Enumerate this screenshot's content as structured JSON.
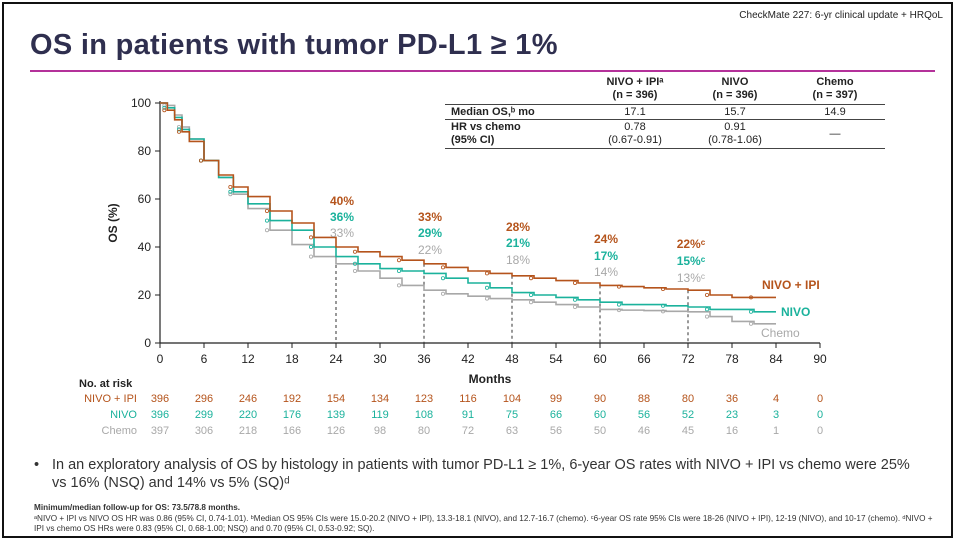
{
  "header": {
    "top_right": "CheckMate 227: 6-yr clinical update + HRQoL",
    "title": "OS in patients with tumor PD-L1 ≥ 1%"
  },
  "stats_table": {
    "columns": [
      "NIVO + IPIᵃ",
      "NIVO",
      "Chemo"
    ],
    "ns": [
      "(n = 396)",
      "(n = 396)",
      "(n = 397)"
    ],
    "median_label": "Median OS,ᵇ mo",
    "median": [
      "17.1",
      "15.7",
      "14.9"
    ],
    "hr_label_1": "HR vs chemo",
    "hr_label_2": "(95% CI)",
    "hr": [
      "0.78",
      "0.91",
      "—"
    ],
    "hr_ci": [
      "(0.67-0.91)",
      "(0.78-1.06)",
      ""
    ]
  },
  "chart_data": {
    "type": "line",
    "xlabel": "Months",
    "ylabel": "OS (%)",
    "xlim": [
      0,
      90
    ],
    "ylim": [
      0,
      100
    ],
    "xticks": [
      0,
      6,
      12,
      18,
      24,
      30,
      36,
      42,
      48,
      54,
      60,
      66,
      72,
      78,
      84,
      90
    ],
    "yticks": [
      0,
      20,
      40,
      60,
      80,
      100
    ],
    "series": [
      {
        "name": "NIVO + IPI",
        "color": "#b5541c",
        "x": [
          0,
          1,
          2,
          3,
          4,
          6,
          8,
          10,
          12,
          15,
          18,
          21,
          24,
          27,
          30,
          33,
          36,
          39,
          42,
          45,
          48,
          51,
          54,
          57,
          60,
          63,
          66,
          69,
          72,
          75,
          78,
          81,
          84
        ],
        "y": [
          100,
          97,
          93,
          88,
          84,
          76,
          70,
          65,
          61,
          55,
          50,
          44,
          40,
          38,
          36,
          34.5,
          33,
          31.5,
          30,
          29,
          28,
          27,
          26,
          25,
          24,
          23.5,
          23,
          22.5,
          22,
          20,
          19,
          19,
          19
        ]
      },
      {
        "name": "NIVO",
        "color": "#1bb29c",
        "x": [
          0,
          1,
          2,
          3,
          4,
          6,
          8,
          10,
          12,
          15,
          18,
          21,
          24,
          27,
          30,
          33,
          36,
          39,
          42,
          45,
          48,
          51,
          54,
          57,
          60,
          63,
          66,
          69,
          72,
          75,
          78,
          81,
          84
        ],
        "y": [
          100,
          98,
          94,
          89,
          85,
          76,
          69,
          63,
          58,
          51,
          47,
          40,
          36,
          33,
          31,
          30,
          29,
          27,
          25,
          23,
          21,
          20,
          19,
          18,
          17,
          16,
          16,
          15.5,
          15,
          14,
          14,
          13,
          13
        ]
      },
      {
        "name": "Chemo",
        "color": "#a8a8a8",
        "x": [
          0,
          1,
          2,
          3,
          4,
          6,
          8,
          10,
          12,
          15,
          18,
          21,
          24,
          27,
          30,
          33,
          36,
          39,
          42,
          45,
          48,
          51,
          54,
          57,
          60,
          63,
          66,
          69,
          72,
          75,
          78,
          81,
          84
        ],
        "y": [
          100,
          99,
          95,
          90,
          85,
          76,
          69,
          62,
          56,
          47,
          41,
          36,
          33,
          30,
          27,
          24,
          22,
          20.5,
          19.5,
          18.5,
          18,
          17,
          16,
          15,
          14,
          13.7,
          13.5,
          13.2,
          13,
          11,
          9,
          8,
          8
        ]
      }
    ],
    "annotations": [
      {
        "x": 24,
        "labels": [
          {
            "text": "40%",
            "series": "NIVO + IPI"
          },
          {
            "text": "36%",
            "series": "NIVO"
          },
          {
            "text": "33%",
            "series": "Chemo"
          }
        ]
      },
      {
        "x": 36,
        "labels": [
          {
            "text": "33%",
            "series": "NIVO + IPI"
          },
          {
            "text": "29%",
            "series": "NIVO"
          },
          {
            "text": "22%",
            "series": "Chemo"
          }
        ]
      },
      {
        "x": 48,
        "labels": [
          {
            "text": "28%",
            "series": "NIVO + IPI"
          },
          {
            "text": "21%",
            "series": "NIVO"
          },
          {
            "text": "18%",
            "series": "Chemo"
          }
        ]
      },
      {
        "x": 60,
        "labels": [
          {
            "text": "24%",
            "series": "NIVO + IPI"
          },
          {
            "text": "17%",
            "series": "NIVO"
          },
          {
            "text": "14%",
            "series": "Chemo"
          }
        ]
      },
      {
        "x": 72,
        "labels": [
          {
            "text": "22%ᶜ",
            "series": "NIVO + IPI"
          },
          {
            "text": "15%ᶜ",
            "series": "NIVO"
          },
          {
            "text": "13%ᶜ",
            "series": "Chemo"
          }
        ]
      }
    ],
    "line_labels": [
      "NIVO + IPI",
      "NIVO",
      "Chemo"
    ],
    "at_risk": {
      "title": "No. at risk",
      "rows": [
        {
          "label": "NIVO + IPI",
          "color": "#b5541c",
          "values": [
            396,
            296,
            246,
            192,
            154,
            134,
            123,
            116,
            104,
            99,
            90,
            88,
            80,
            36,
            4,
            0
          ]
        },
        {
          "label": "NIVO",
          "color": "#1bb29c",
          "values": [
            396,
            299,
            220,
            176,
            139,
            119,
            108,
            91,
            75,
            66,
            60,
            56,
            52,
            23,
            3,
            0
          ]
        },
        {
          "label": "Chemo",
          "color": "#a8a8a8",
          "values": [
            397,
            306,
            218,
            166,
            126,
            98,
            80,
            72,
            63,
            56,
            50,
            46,
            45,
            16,
            1,
            0
          ]
        }
      ]
    }
  },
  "bullet": {
    "symbol": "•",
    "text": "In an exploratory analysis of OS by histology in patients with tumor PD-L1 ≥ 1%, 6-year OS rates with NIVO + IPI vs chemo were 25% vs 16% (NSQ) and 14% vs 5% (SQ)ᵈ"
  },
  "footnotes": {
    "bold": "Minimum/median follow-up for OS: 73.5/78.8 months.",
    "text": "ᵃNIVO + IPI vs NIVO OS HR was 0.86 (95% CI, 0.74-1.01). ᵇMedian OS 95% CIs were 15.0-20.2 (NIVO + IPI), 13.3-18.1 (NIVO), and 12.7-16.7 (chemo). ᶜ6-year OS rate 95% CIs were 18-26 (NIVO + IPI), 12-19 (NIVO), and 10-17 (chemo). ᵈNIVO + IPI vs chemo OS HRs were 0.83 (95% CI, 0.68-1.00; NSQ) and 0.70 (95% CI, 0.53-0.92; SQ)."
  }
}
